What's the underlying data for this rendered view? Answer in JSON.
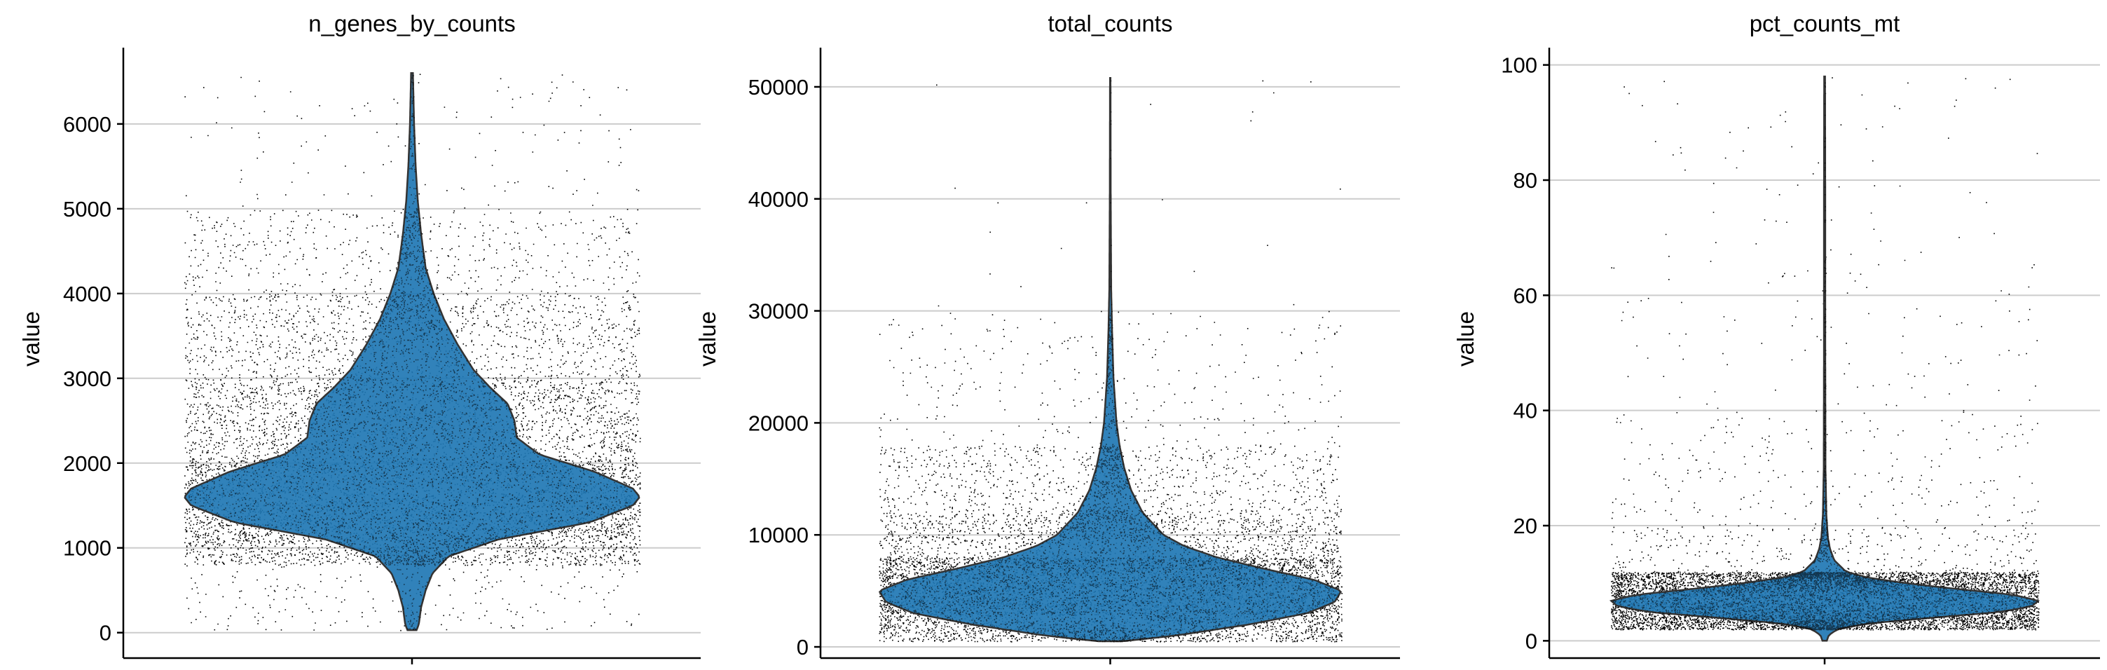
{
  "figure": {
    "background": "#ffffff",
    "violin_fill": "#1f77b4",
    "violin_edge": "#333333",
    "point_color": "#000000",
    "grid_color": "#cccccc",
    "axis_color": "#000000"
  },
  "chart_data": [
    {
      "type": "violin",
      "title": "n_genes_by_counts",
      "xlabel": "",
      "ylabel": "value",
      "grid": true,
      "ylim": [
        -300,
        6900
      ],
      "yticks": [
        0,
        1000,
        2000,
        3000,
        4000,
        5000,
        6000
      ],
      "ytick_labels": [
        "0",
        "1000",
        "2000",
        "3000",
        "4000",
        "5000",
        "6000"
      ],
      "distribution": {
        "min": 30,
        "max": 6600,
        "mode": 1600,
        "profile": [
          [
            30,
            0.02
          ],
          [
            100,
            0.03
          ],
          [
            300,
            0.04
          ],
          [
            500,
            0.06
          ],
          [
            700,
            0.09
          ],
          [
            900,
            0.16
          ],
          [
            1100,
            0.38
          ],
          [
            1300,
            0.78
          ],
          [
            1500,
            0.97
          ],
          [
            1600,
            1.0
          ],
          [
            1700,
            0.97
          ],
          [
            1900,
            0.8
          ],
          [
            2100,
            0.56
          ],
          [
            2300,
            0.46
          ],
          [
            2500,
            0.45
          ],
          [
            2700,
            0.42
          ],
          [
            2900,
            0.34
          ],
          [
            3100,
            0.27
          ],
          [
            3400,
            0.2
          ],
          [
            3700,
            0.14
          ],
          [
            4000,
            0.095
          ],
          [
            4300,
            0.06
          ],
          [
            4700,
            0.04
          ],
          [
            5100,
            0.025
          ],
          [
            5500,
            0.016
          ],
          [
            6000,
            0.009
          ],
          [
            6600,
            0.004
          ]
        ],
        "points": {
          "count": 9000,
          "min": 30,
          "max": 6600,
          "bands": [
            [
              0,
              800,
              0.02
            ],
            [
              800,
              1100,
              0.1
            ],
            [
              1100,
              2000,
              0.4
            ],
            [
              2000,
              3000,
              0.27
            ],
            [
              3000,
              4000,
              0.14
            ],
            [
              4000,
              5000,
              0.055
            ],
            [
              5000,
              6600,
              0.015
            ]
          ]
        }
      }
    },
    {
      "type": "violin",
      "title": "total_counts",
      "xlabel": "",
      "ylabel": "value",
      "grid": true,
      "ylim": [
        -1000,
        53500
      ],
      "yticks": [
        0,
        10000,
        20000,
        30000,
        40000,
        50000
      ],
      "ytick_labels": [
        "0",
        "10000",
        "20000",
        "30000",
        "40000",
        "50000"
      ],
      "distribution": {
        "min": 500,
        "max": 50800,
        "mode": 5000,
        "profile": [
          [
            500,
            0.05
          ],
          [
            1000,
            0.28
          ],
          [
            2000,
            0.6
          ],
          [
            3000,
            0.85
          ],
          [
            4000,
            0.97
          ],
          [
            5000,
            1.0
          ],
          [
            6000,
            0.88
          ],
          [
            7000,
            0.66
          ],
          [
            8000,
            0.46
          ],
          [
            9000,
            0.32
          ],
          [
            10000,
            0.23
          ],
          [
            12000,
            0.14
          ],
          [
            14000,
            0.09
          ],
          [
            16000,
            0.06
          ],
          [
            18000,
            0.04
          ],
          [
            20000,
            0.027
          ],
          [
            24000,
            0.014
          ],
          [
            28000,
            0.008
          ],
          [
            32000,
            0.004
          ],
          [
            40000,
            0.002
          ],
          [
            50800,
            0.001
          ]
        ],
        "points": {
          "count": 9000,
          "min": 500,
          "max": 50800,
          "bands": [
            [
              500,
              3000,
              0.18
            ],
            [
              3000,
              8000,
              0.55
            ],
            [
              8000,
              12000,
              0.14
            ],
            [
              12000,
              18000,
              0.095
            ],
            [
              18000,
              30000,
              0.033
            ],
            [
              30000,
              50800,
              0.002
            ]
          ]
        }
      }
    },
    {
      "type": "violin",
      "title": "pct_counts_mt",
      "xlabel": "",
      "ylabel": "value",
      "grid": true,
      "ylim": [
        -3,
        103
      ],
      "yticks": [
        0,
        20,
        40,
        60,
        80,
        100
      ],
      "ytick_labels": [
        "0",
        "20",
        "40",
        "60",
        "80",
        "100"
      ],
      "distribution": {
        "min": 0,
        "max": 98,
        "mode": 7,
        "profile": [
          [
            0,
            0.01
          ],
          [
            1,
            0.02
          ],
          [
            2,
            0.06
          ],
          [
            3,
            0.2
          ],
          [
            4,
            0.5
          ],
          [
            5,
            0.82
          ],
          [
            6,
            0.97
          ],
          [
            7,
            1.0
          ],
          [
            8,
            0.88
          ],
          [
            9,
            0.62
          ],
          [
            10,
            0.38
          ],
          [
            11,
            0.2
          ],
          [
            12,
            0.1
          ],
          [
            14,
            0.045
          ],
          [
            16,
            0.025
          ],
          [
            18,
            0.015
          ],
          [
            22,
            0.008
          ],
          [
            30,
            0.004
          ],
          [
            50,
            0.003
          ],
          [
            75,
            0.003
          ],
          [
            98,
            0.002
          ]
        ],
        "points": {
          "count": 9000,
          "min": 0,
          "max": 98,
          "bands": [
            [
              2,
              12,
              0.92
            ],
            [
              12,
              20,
              0.035
            ],
            [
              20,
              40,
              0.025
            ],
            [
              40,
              70,
              0.012
            ],
            [
              70,
              98,
              0.008
            ]
          ]
        }
      }
    }
  ]
}
